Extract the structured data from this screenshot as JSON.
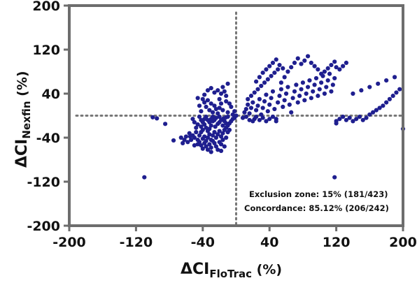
{
  "chart_data": {
    "type": "scatter",
    "xlabel": {
      "main": "ΔCI",
      "sub": "FloTrac",
      "unit": " (%)"
    },
    "ylabel": {
      "main": "ΔCI",
      "sub": "Nexfin",
      "unit": " (%)"
    },
    "xlim": [
      -200,
      200
    ],
    "ylim": [
      -200,
      200
    ],
    "xticks": [
      "-200",
      "-120",
      "-40",
      "40",
      "120",
      "200"
    ],
    "yticks": [
      "200",
      "120",
      "40",
      "-40",
      "-120",
      "-200"
    ],
    "xtick_values": [
      -200,
      -120,
      -40,
      40,
      120,
      200
    ],
    "ytick_values": [
      200,
      120,
      40,
      -40,
      -120,
      -200
    ],
    "exclusion_zone": {
      "x": 0,
      "y": 0
    },
    "grid": false,
    "point_color": "#1f1f8f",
    "axis_color": "#6d6d6d",
    "annotations": [
      "Exclusion zone: 15% (181/423)",
      "Concordance: 85.12% (206/242)"
    ],
    "points": [
      [
        -100,
        -3
      ],
      [
        -95,
        -5
      ],
      [
        -85,
        -15
      ],
      [
        -75,
        -45
      ],
      [
        -55,
        -38
      ],
      [
        -50,
        -40
      ],
      [
        -46,
        -44
      ],
      [
        -44,
        -36
      ],
      [
        -42,
        -30
      ],
      [
        -40,
        -42
      ],
      [
        -38,
        -38
      ],
      [
        -36,
        -46
      ],
      [
        -34,
        -40
      ],
      [
        -32,
        -34
      ],
      [
        -30,
        -44
      ],
      [
        -28,
        -36
      ],
      [
        -26,
        -30
      ],
      [
        -24,
        -40
      ],
      [
        -22,
        -34
      ],
      [
        -20,
        -28
      ],
      [
        -18,
        -38
      ],
      [
        -16,
        -32
      ],
      [
        -14,
        -26
      ],
      [
        -12,
        -22
      ],
      [
        -10,
        -18
      ],
      [
        -8,
        -14
      ],
      [
        -6,
        -10
      ],
      [
        -4,
        -6
      ],
      [
        -2,
        -4
      ],
      [
        0,
        0
      ],
      [
        -25,
        -20
      ],
      [
        -22,
        -15
      ],
      [
        -20,
        -12
      ],
      [
        -18,
        -8
      ],
      [
        -15,
        -5
      ],
      [
        -12,
        -3
      ],
      [
        -10,
        -2
      ],
      [
        -28,
        -10
      ],
      [
        -30,
        -18
      ],
      [
        -32,
        -24
      ],
      [
        -34,
        -28
      ],
      [
        -36,
        -22
      ],
      [
        -38,
        -16
      ],
      [
        -40,
        -26
      ],
      [
        -42,
        -20
      ],
      [
        -44,
        -48
      ],
      [
        -46,
        -52
      ],
      [
        -48,
        -30
      ],
      [
        -50,
        -54
      ],
      [
        -52,
        -36
      ],
      [
        -54,
        -44
      ],
      [
        -56,
        -32
      ],
      [
        -58,
        -48
      ],
      [
        -60,
        -38
      ],
      [
        -62,
        -44
      ],
      [
        -64,
        -50
      ],
      [
        -66,
        -40
      ],
      [
        -20,
        -48
      ],
      [
        -18,
        -52
      ],
      [
        -16,
        -44
      ],
      [
        -14,
        -56
      ],
      [
        -12,
        -40
      ],
      [
        -24,
        -56
      ],
      [
        -26,
        -50
      ],
      [
        -28,
        -46
      ],
      [
        -30,
        -58
      ],
      [
        -32,
        -52
      ],
      [
        -34,
        -62
      ],
      [
        -36,
        -56
      ],
      [
        -38,
        -50
      ],
      [
        -40,
        -60
      ],
      [
        -42,
        -54
      ],
      [
        -22,
        -62
      ],
      [
        -18,
        -64
      ],
      [
        -30,
        -66
      ],
      [
        -10,
        -30
      ],
      [
        -8,
        -26
      ],
      [
        -12,
        -14
      ],
      [
        -14,
        -10
      ],
      [
        -16,
        -18
      ],
      [
        -20,
        -2
      ],
      [
        -24,
        -4
      ],
      [
        -26,
        -8
      ],
      [
        -28,
        -2
      ],
      [
        -30,
        -6
      ],
      [
        -32,
        -12
      ],
      [
        -34,
        -8
      ],
      [
        -36,
        -2
      ],
      [
        -38,
        -6
      ],
      [
        -40,
        -12
      ],
      [
        -42,
        -8
      ],
      [
        -44,
        -2
      ],
      [
        -46,
        -16
      ],
      [
        -48,
        -22
      ],
      [
        -50,
        -12
      ],
      [
        -52,
        -6
      ],
      [
        -22,
        4
      ],
      [
        -24,
        12
      ],
      [
        -26,
        18
      ],
      [
        -28,
        6
      ],
      [
        -30,
        22
      ],
      [
        -32,
        10
      ],
      [
        -34,
        28
      ],
      [
        -36,
        16
      ],
      [
        -38,
        24
      ],
      [
        -40,
        30
      ],
      [
        -42,
        8
      ],
      [
        -44,
        18
      ],
      [
        -46,
        32
      ],
      [
        -20,
        30
      ],
      [
        -18,
        40
      ],
      [
        -16,
        52
      ],
      [
        -14,
        44
      ],
      [
        -12,
        36
      ],
      [
        -10,
        58
      ],
      [
        -22,
        46
      ],
      [
        -26,
        42
      ],
      [
        -30,
        50
      ],
      [
        -34,
        46
      ],
      [
        -38,
        38
      ],
      [
        -6,
        16
      ],
      [
        -8,
        22
      ],
      [
        -10,
        6
      ],
      [
        -4,
        2
      ],
      [
        -2,
        8
      ],
      [
        -12,
        26
      ],
      [
        -18,
        22
      ],
      [
        -16,
        10
      ],
      [
        -20,
        14
      ],
      [
        -110,
        -112
      ],
      [
        8,
        -4
      ],
      [
        10,
        6
      ],
      [
        12,
        12
      ],
      [
        14,
        20
      ],
      [
        16,
        4
      ],
      [
        18,
        14
      ],
      [
        20,
        24
      ],
      [
        22,
        -6
      ],
      [
        24,
        10
      ],
      [
        26,
        18
      ],
      [
        28,
        30
      ],
      [
        30,
        2
      ],
      [
        32,
        14
      ],
      [
        34,
        26
      ],
      [
        36,
        38
      ],
      [
        38,
        8
      ],
      [
        40,
        20
      ],
      [
        42,
        32
      ],
      [
        44,
        44
      ],
      [
        46,
        12
      ],
      [
        48,
        -6
      ],
      [
        50,
        24
      ],
      [
        52,
        36
      ],
      [
        54,
        48
      ],
      [
        56,
        16
      ],
      [
        58,
        28
      ],
      [
        60,
        40
      ],
      [
        62,
        52
      ],
      [
        64,
        20
      ],
      [
        66,
        6
      ],
      [
        68,
        32
      ],
      [
        70,
        44
      ],
      [
        72,
        56
      ],
      [
        74,
        24
      ],
      [
        76,
        36
      ],
      [
        78,
        48
      ],
      [
        80,
        60
      ],
      [
        82,
        28
      ],
      [
        84,
        40
      ],
      [
        86,
        52
      ],
      [
        88,
        64
      ],
      [
        90,
        32
      ],
      [
        92,
        44
      ],
      [
        94,
        56
      ],
      [
        96,
        68
      ],
      [
        98,
        36
      ],
      [
        100,
        48
      ],
      [
        102,
        60
      ],
      [
        104,
        72
      ],
      [
        106,
        40
      ],
      [
        108,
        52
      ],
      [
        110,
        64
      ],
      [
        112,
        76
      ],
      [
        114,
        44
      ],
      [
        116,
        56
      ],
      [
        118,
        68
      ],
      [
        12,
        -2
      ],
      [
        16,
        -8
      ],
      [
        20,
        -10
      ],
      [
        24,
        -2
      ],
      [
        28,
        -8
      ],
      [
        32,
        -4
      ],
      [
        36,
        -10
      ],
      [
        40,
        -6
      ],
      [
        44,
        -2
      ],
      [
        48,
        -10
      ],
      [
        14,
        30
      ],
      [
        18,
        36
      ],
      [
        22,
        42
      ],
      [
        26,
        48
      ],
      [
        30,
        54
      ],
      [
        34,
        60
      ],
      [
        38,
        66
      ],
      [
        42,
        72
      ],
      [
        46,
        78
      ],
      [
        50,
        84
      ],
      [
        54,
        60
      ],
      [
        58,
        70
      ],
      [
        62,
        80
      ],
      [
        66,
        88
      ],
      [
        24,
        62
      ],
      [
        28,
        70
      ],
      [
        32,
        78
      ],
      [
        36,
        84
      ],
      [
        40,
        90
      ],
      [
        44,
        96
      ],
      [
        48,
        102
      ],
      [
        52,
        92
      ],
      [
        56,
        86
      ],
      [
        70,
        96
      ],
      [
        74,
        104
      ],
      [
        78,
        94
      ],
      [
        82,
        100
      ],
      [
        86,
        108
      ],
      [
        90,
        96
      ],
      [
        94,
        90
      ],
      [
        98,
        84
      ],
      [
        102,
        76
      ],
      [
        106,
        80
      ],
      [
        110,
        86
      ],
      [
        114,
        92
      ],
      [
        118,
        98
      ],
      [
        120,
        88
      ],
      [
        124,
        84
      ],
      [
        128,
        90
      ],
      [
        132,
        96
      ],
      [
        120,
        -10
      ],
      [
        124,
        -6
      ],
      [
        128,
        -2
      ],
      [
        132,
        -8
      ],
      [
        136,
        -4
      ],
      [
        140,
        -10
      ],
      [
        144,
        -6
      ],
      [
        148,
        -2
      ],
      [
        152,
        -8
      ],
      [
        156,
        -4
      ],
      [
        160,
        2
      ],
      [
        164,
        6
      ],
      [
        168,
        10
      ],
      [
        172,
        14
      ],
      [
        176,
        18
      ],
      [
        180,
        24
      ],
      [
        184,
        30
      ],
      [
        188,
        36
      ],
      [
        192,
        42
      ],
      [
        196,
        48
      ],
      [
        200,
        -24
      ],
      [
        140,
        40
      ],
      [
        150,
        46
      ],
      [
        160,
        52
      ],
      [
        170,
        58
      ],
      [
        180,
        64
      ],
      [
        190,
        70
      ],
      [
        118,
        -112
      ],
      [
        120,
        -14
      ]
    ]
  }
}
